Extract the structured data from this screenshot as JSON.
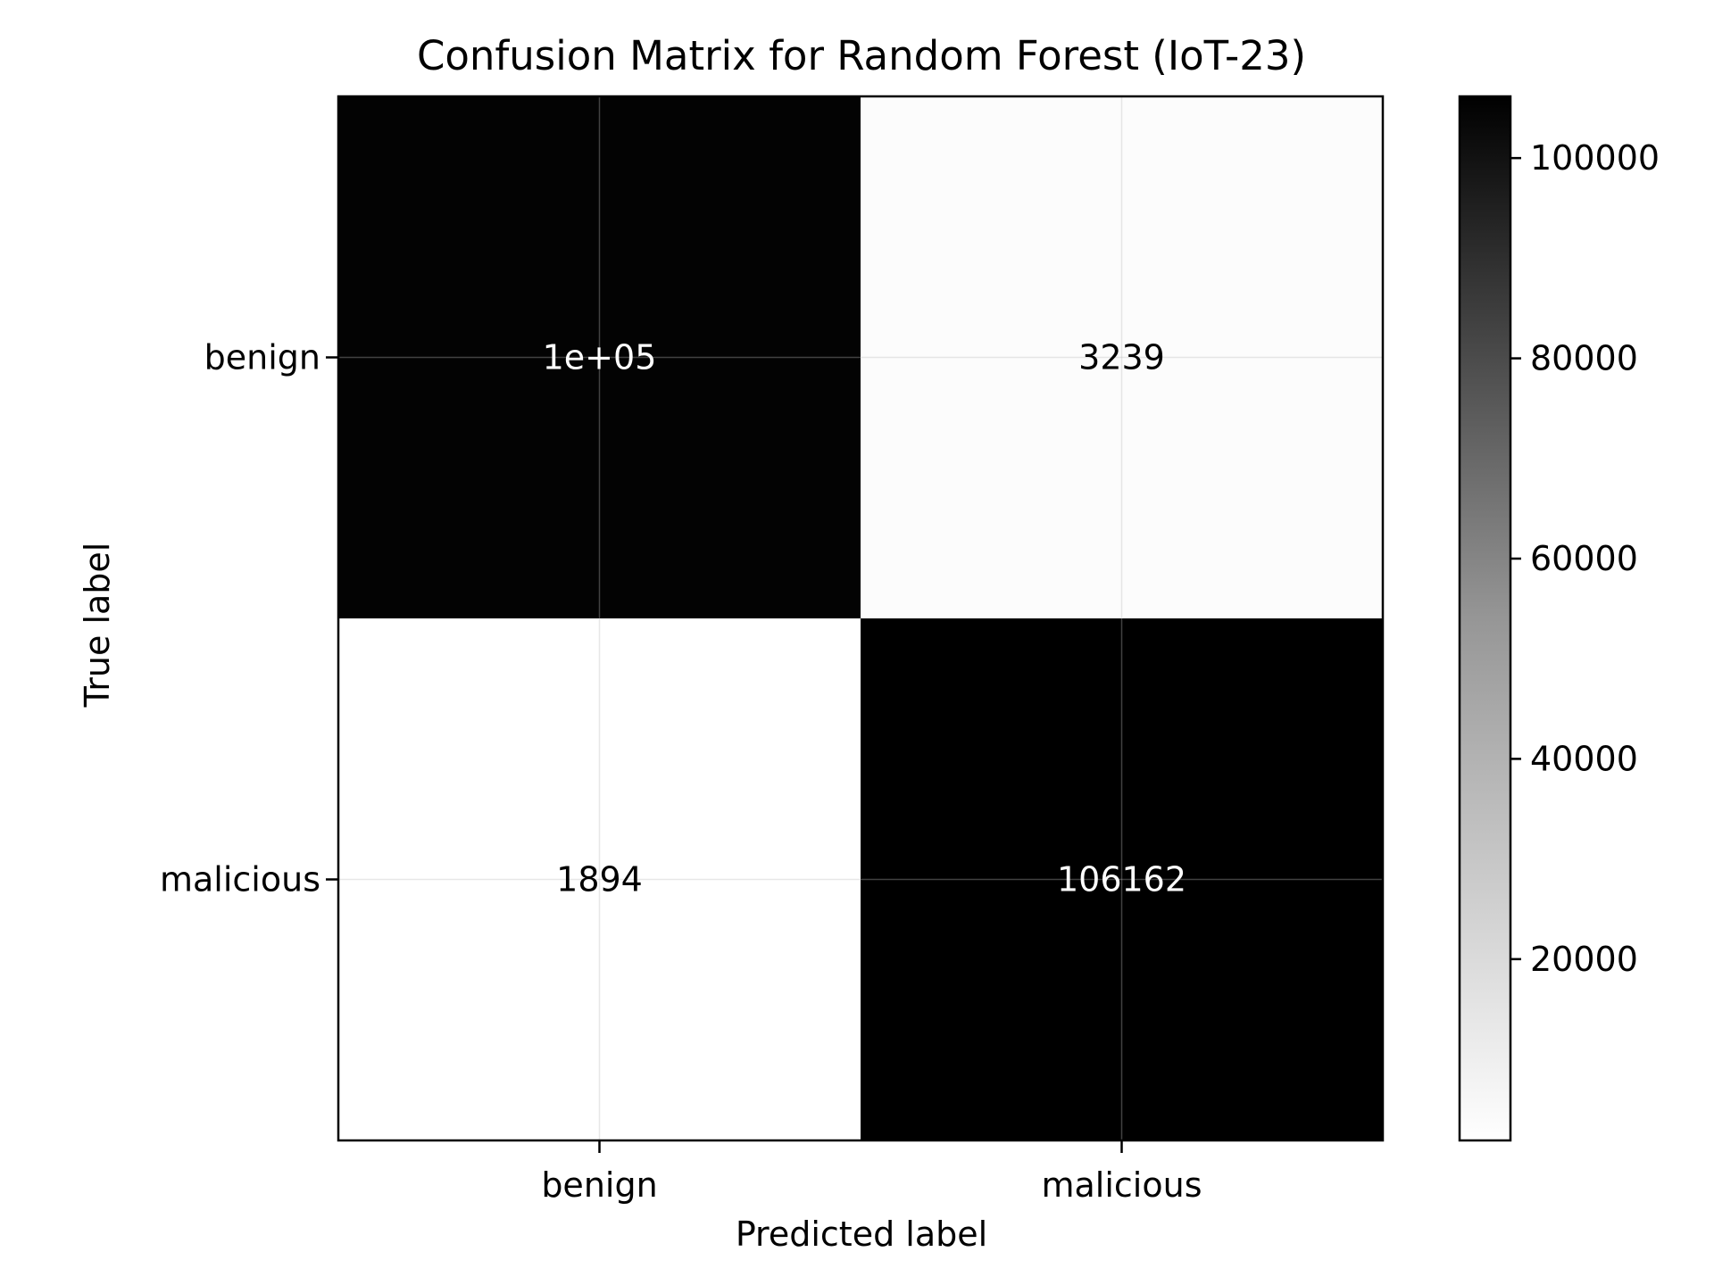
{
  "chart_data": {
    "type": "heatmap",
    "title": "Confusion Matrix for Random Forest (IoT-23)",
    "xlabel": "Predicted label",
    "ylabel": "True label",
    "x_categories": [
      "benign",
      "malicious"
    ],
    "y_categories": [
      "benign",
      "malicious"
    ],
    "values": [
      [
        105000,
        3239
      ],
      [
        1894,
        106162
      ]
    ],
    "cell_labels": [
      [
        "1e+05",
        "3239"
      ],
      [
        "1894",
        "106162"
      ]
    ],
    "colormap": "Greys",
    "color_min": 1894,
    "color_max": 106162,
    "colorbar": {
      "ticks": [
        20000,
        40000,
        60000,
        80000,
        100000
      ],
      "tick_labels": [
        "20000",
        "40000",
        "60000",
        "80000",
        "100000"
      ]
    },
    "grid": true
  }
}
